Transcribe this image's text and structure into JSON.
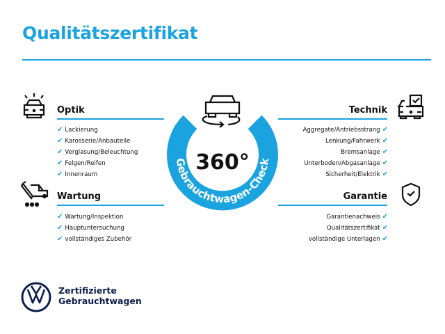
{
  "title": "Qualitätszertifikat",
  "accent": "#1aa3df",
  "badge": {
    "value": "360°",
    "ring_text": "Gebrauchtwagen-Check"
  },
  "sections": {
    "optik": {
      "title": "Optik",
      "icon": "car-lights-icon",
      "items": [
        "Lackierung",
        "Karosserie/Anbauteile",
        "Verglasung/Beleuchtung",
        "Felgen/Reifen",
        "Innenraum"
      ]
    },
    "wartung": {
      "title": "Wartung",
      "icon": "service-tools-icon",
      "items": [
        "Wartung/Inspektion",
        "Hauptuntersuchung",
        "vollständiges Zubehör"
      ]
    },
    "technik": {
      "title": "Technik",
      "icon": "car-checklist-icon",
      "items": [
        "Aggregate/Antriebsstrang",
        "Lenkung/Fahrwerk",
        "Bremsanlage",
        "Unterboden/Abgasanlage",
        "Sicherheit/Elektrik"
      ]
    },
    "garantie": {
      "title": "Garantie",
      "icon": "shield-check-icon",
      "items": [
        "Garantienachweis",
        "Qualitätszertifikat",
        "vollständige Unterlagen"
      ]
    }
  },
  "check": "✔",
  "brand": {
    "line1": "Zertifizierte",
    "line2": "Gebrauchtwagen"
  }
}
